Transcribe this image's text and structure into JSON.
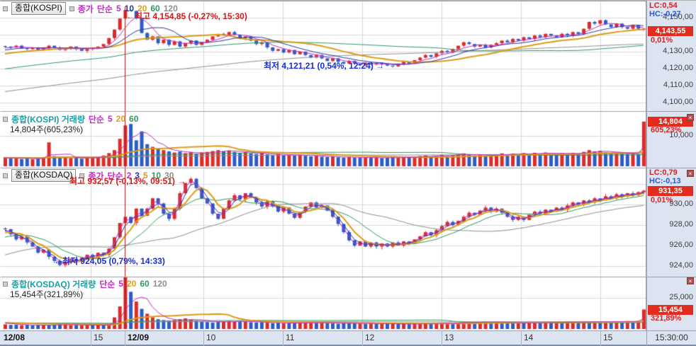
{
  "colors": {
    "up": "#dd2a2a",
    "down": "#2d5bc8",
    "divider": "#b01818",
    "grid": "#d9d9d9",
    "ma_magenta": "#c32cc3",
    "ma_navy": "#2438a8",
    "ma_orange": "#dd9c18",
    "ma_green": "#2e9a60",
    "ma_gray": "#8f8f8f",
    "badge_bg": "#e32b1e",
    "axis_bg": "#dbe4f0"
  },
  "panel1": {
    "title": "종합(KOSPI)",
    "legend_close": "종가",
    "legend_simple": "단순",
    "ma_labels": [
      "5",
      "10",
      "20",
      "60",
      "120"
    ],
    "lc": "LC:0,54",
    "hc": "HC:-0,27",
    "price_badge": "4,143,55",
    "pct_badge": "0,01%",
    "annotation_high": "←최고 4,154,85 (-0,27%, 15:30)",
    "annotation_low": "최저 4,121,21 (0,54%, 12:24) →"
  },
  "panel2": {
    "title": "종합(KOSPI) 거래량",
    "legend_simple": "단순",
    "ma_labels": [
      "5",
      "20",
      "60",
      "120"
    ],
    "summary": "14,804주(605,23%)",
    "vol_badge": "14,804",
    "pct_badge": "605,23%",
    "close_label": "x"
  },
  "panel3": {
    "title": "종합(KOSDAQ)",
    "legend_close": "종가",
    "legend_simple": "단순",
    "ma_labels": [
      "2",
      "3",
      "5",
      "10",
      "30"
    ],
    "lc": "LC:0,79",
    "hc": "HC:-0,13",
    "price_badge": "931,35",
    "pct_badge": "0,01%",
    "annotation_high": "최고 932,57 (-0,13%, 09:51) →",
    "annotation_low": "←최저 924,05 (0,79%, 14:33)",
    "close_label": "x"
  },
  "panel4": {
    "title": "종합(KOSDAQ) 거래량",
    "legend_simple": "단순",
    "ma_labels": [
      "5",
      "20",
      "60",
      "120"
    ],
    "summary": "15,454주(321,89%)",
    "vol_badge": "15,454",
    "pct_badge": "321,89%",
    "close_label": "x"
  },
  "time_axis": {
    "labels": [
      "12/08",
      "15",
      "12/09",
      "10",
      "11",
      "12",
      "13",
      "14",
      "15"
    ],
    "clock": "15:30:00"
  },
  "chart_data": [
    {
      "type": "candlestick",
      "name": "KOSPI index",
      "ma_periods": [
        5,
        10,
        20,
        60,
        120
      ],
      "ylim": [
        4095,
        4160
      ],
      "ticks": [
        {
          "value": 4150,
          "label": "4,150,00"
        },
        {
          "value": 4140,
          "label": ""
        },
        {
          "value": 4130,
          "label": "4,130,00"
        },
        {
          "value": 4120,
          "label": "4,120,00"
        },
        {
          "value": 4110,
          "label": "4,110,00"
        },
        {
          "value": 4100,
          "label": "4,100,00"
        }
      ],
      "closes": [
        4133.0,
        4132.5,
        4133.5,
        4132.0,
        4131.5,
        4132.5,
        4131.0,
        4132.0,
        4133.5,
        4132.5,
        4131.0,
        4132.0,
        4133.0,
        4131.5,
        4130.5,
        4131.5,
        4132.5,
        4133.0,
        4134.5,
        4138.0,
        4143.0,
        4149.5,
        4154.5,
        4154.0,
        4150.0,
        4141.0,
        4137.0,
        4139.0,
        4135.0,
        4137.0,
        4134.0,
        4136.0,
        4133.0,
        4135.0,
        4136.5,
        4134.0,
        4135.5,
        4137.0,
        4139.0,
        4140.5,
        4139.5,
        4141.5,
        4140.0,
        4138.0,
        4139.0,
        4136.5,
        4134.5,
        4135.5,
        4132.5,
        4130.5,
        4131.5,
        4129.5,
        4131.0,
        4128.5,
        4130.0,
        4128.0,
        4126.5,
        4128.0,
        4126.0,
        4124.5,
        4126.0,
        4124.0,
        4123.0,
        4124.5,
        4123.0,
        4122.0,
        4123.5,
        4122.5,
        4123.5,
        4122.5,
        4121.8,
        4121.3,
        4122.8,
        4124.0,
        4123.0,
        4125.0,
        4126.5,
        4128.0,
        4127.0,
        4129.0,
        4130.5,
        4129.5,
        4131.5,
        4133.5,
        4135.5,
        4134.5,
        4133.0,
        4134.0,
        4132.5,
        4134.0,
        4135.0,
        4136.5,
        4135.5,
        4137.5,
        4136.5,
        4138.5,
        4137.5,
        4139.5,
        4138.5,
        4140.5,
        4139.5,
        4138.5,
        4140.5,
        4139.5,
        4141.5,
        4140.5,
        4143.5,
        4147.5,
        4146.5,
        4148.5,
        4146.0,
        4144.5,
        4146.5,
        4144.5,
        4143.5,
        4145.5,
        4143.5,
        4143.55
      ],
      "high_annotation": {
        "price": 4154.85,
        "text": "최고 4,154,85 (-0,27%, 15:30)"
      },
      "low_annotation": {
        "price": 4121.21,
        "text": "최저 4,121,21 (0,54%, 12:24)"
      },
      "last": 4143.55,
      "change_pct": 0.01
    },
    {
      "type": "bar",
      "name": "KOSPI volume",
      "ma_periods": [
        5,
        20,
        60,
        120
      ],
      "ticks": [
        {
          "value": 10000,
          "label": "10,000"
        }
      ],
      "values": [
        2800,
        2400,
        2600,
        2200,
        2500,
        2100,
        2400,
        2700,
        7800,
        3200,
        2600,
        2900,
        2500,
        2700,
        2300,
        2600,
        2800,
        3000,
        3400,
        4200,
        5200,
        9000,
        13500,
        14000,
        8500,
        11500,
        7200,
        6300,
        5600,
        5200,
        4800,
        4400,
        4700,
        4200,
        4500,
        4000,
        4300,
        4600,
        4900,
        5200,
        4800,
        5100,
        4600,
        4300,
        4500,
        4100,
        3900,
        4200,
        3800,
        3600,
        3900,
        3500,
        3700,
        3400,
        3600,
        3300,
        3100,
        3300,
        3000,
        2900,
        3100,
        2800,
        2700,
        2900,
        2700,
        2600,
        2800,
        2600,
        2700,
        2500,
        2600,
        2800,
        2600,
        2900,
        2700,
        3000,
        3200,
        3400,
        3100,
        3300,
        3600,
        3200,
        3500,
        3800,
        4100,
        3700,
        3400,
        3600,
        3300,
        3600,
        3800,
        4100,
        3700,
        4000,
        3800,
        4200,
        3900,
        4300,
        4000,
        4400,
        4100,
        3800,
        4200,
        3900,
        4300,
        4000,
        4600,
        5200,
        4800,
        5000,
        4500,
        4200,
        4400,
        4100,
        3900,
        4200,
        3800,
        14804
      ],
      "last": 14804,
      "last_pct": 605.23
    },
    {
      "type": "candlestick",
      "name": "KOSDAQ index",
      "ma_periods": [
        2,
        3,
        5,
        10,
        30
      ],
      "ylim": [
        923,
        933.5
      ],
      "ticks": [
        {
          "value": 932,
          "label": ""
        },
        {
          "value": 930,
          "label": "930,00"
        },
        {
          "value": 928,
          "label": "928,00"
        },
        {
          "value": 926,
          "label": "926,00"
        },
        {
          "value": 924,
          "label": "924,00"
        }
      ],
      "closes": [
        927.6,
        927.1,
        926.6,
        926.9,
        926.3,
        925.9,
        925.3,
        925.6,
        924.9,
        924.5,
        924.1,
        924.4,
        924.7,
        924.4,
        924.8,
        925.1,
        924.8,
        925.3,
        925.1,
        925.7,
        926.8,
        928.2,
        928.8,
        928.2,
        929.6,
        928.9,
        929.6,
        930.6,
        930.1,
        929.1,
        928.6,
        929.6,
        931.1,
        932.1,
        932.5,
        931.6,
        930.6,
        930.1,
        929.1,
        928.6,
        929.6,
        930.4,
        930.9,
        930.5,
        931.1,
        930.7,
        930.2,
        929.8,
        930.3,
        929.8,
        929.3,
        929.7,
        929.1,
        928.7,
        929.3,
        929.8,
        930.2,
        929.7,
        929.9,
        929.4,
        928.8,
        928.1,
        927.3,
        926.5,
        926.0,
        926.4,
        925.9,
        926.3,
        925.9,
        926.2,
        925.9,
        926.3,
        926.0,
        926.4,
        926.2,
        926.6,
        926.9,
        927.3,
        927.0,
        927.5,
        927.9,
        928.3,
        928.0,
        928.4,
        928.8,
        929.2,
        929.0,
        929.4,
        929.7,
        929.3,
        929.6,
        929.2,
        928.8,
        928.5,
        928.8,
        928.5,
        929.0,
        929.3,
        929.1,
        929.5,
        929.3,
        929.7,
        929.5,
        929.9,
        930.2,
        930.0,
        930.4,
        930.2,
        930.6,
        930.4,
        930.8,
        930.6,
        931.0,
        930.8,
        931.1,
        930.9,
        931.2,
        931.35
      ],
      "high_annotation": {
        "price": 932.57,
        "text": "최고 932,57 (-0,13%, 09:51)"
      },
      "low_annotation": {
        "price": 924.05,
        "text": "최저 924,05 (0,79%, 14:33)"
      },
      "last": 931.35,
      "change_pct": 0.01
    },
    {
      "type": "bar",
      "name": "KOSDAQ volume",
      "ma_periods": [
        5,
        20,
        60,
        120
      ],
      "ticks": [
        {
          "value": 25000,
          "label": "25,000"
        }
      ],
      "values": [
        3200,
        2800,
        3000,
        2600,
        2900,
        2500,
        2800,
        2400,
        2700,
        3000,
        3400,
        2900,
        2600,
        2800,
        2500,
        2700,
        2400,
        2600,
        2900,
        3300,
        9000,
        18000,
        42000,
        30000,
        22000,
        16000,
        12000,
        9000,
        7500,
        6800,
        6200,
        6800,
        7500,
        8200,
        7000,
        6200,
        5600,
        5100,
        4700,
        5200,
        5700,
        6100,
        5600,
        5900,
        5400,
        5000,
        4700,
        5000,
        4600,
        4300,
        4600,
        4200,
        4400,
        4100,
        4400,
        4700,
        5000,
        4500,
        4700,
        4300,
        4000,
        3700,
        4200,
        4700,
        4300,
        4000,
        3700,
        4000,
        3600,
        3800,
        3500,
        3800,
        3500,
        3700,
        3400,
        3600,
        3900,
        4200,
        3800,
        4100,
        4400,
        4700,
        4300,
        4600,
        4900,
        5200,
        4800,
        5100,
        5400,
        5000,
        5200,
        4800,
        4500,
        4200,
        4500,
        4200,
        4600,
        4900,
        4600,
        5000,
        4700,
        5100,
        4800,
        5200,
        5500,
        5100,
        5500,
        5200,
        5600,
        5300,
        5700,
        5400,
        5800,
        5500,
        5900,
        5600,
        6000,
        15454
      ],
      "last": 15454,
      "last_pct": 321.89
    }
  ]
}
